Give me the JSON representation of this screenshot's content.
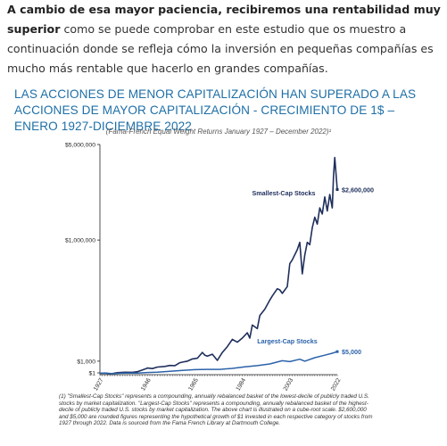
{
  "intro": {
    "lead": "A cambio de esa mayor paciencia, recibiremos una rentabilidad muy superior",
    "rest": "como se puede comprobar en este estudio que os muestro a continuación donde se refleja cómo la inversión en pequeñas compañías es mucho más rentable que hacerlo en grandes compañías."
  },
  "heading": "LAS ACCIONES DE MENOR CAPITALIZACIÓN HAN SUPERADO A LAS ACCIONES DE MAYOR CAPITALIZACIÓN - CRECIMIENTO DE 1$ – ENERO 1927-DICIEMBRE 2022",
  "chart_data": {
    "type": "line",
    "title": "(Fama-French Equal Weight Returns January 1927 – December 2022)¹",
    "scale": "cube-root",
    "ylim": [
      0,
      5000000
    ],
    "y_ticks": [
      {
        "label": "$5,000,000",
        "value": 5000000
      },
      {
        "label": "$1,000,000",
        "value": 1000000
      },
      {
        "label": "$1,000",
        "value": 1000
      },
      {
        "label": "$1",
        "value": 1
      }
    ],
    "x_ticks": [
      "1927",
      "1946",
      "1965",
      "1984",
      "2003",
      "2022"
    ],
    "xlim": [
      1927,
      2022
    ],
    "grid": false,
    "series": [
      {
        "name": "Smallest-Cap Stocks",
        "color": "#1f2f5c",
        "end_label": "$2,600,000",
        "x": [
          1927,
          1929,
          1931,
          1932,
          1934,
          1937,
          1940,
          1942,
          1945,
          1946,
          1948,
          1950,
          1953,
          1955,
          1957,
          1959,
          1961,
          1962,
          1964,
          1966,
          1968,
          1969,
          1970,
          1972,
          1974,
          1976,
          1978,
          1980,
          1982,
          1984,
          1986,
          1987,
          1988,
          1990,
          1991,
          1993,
          1995,
          1996,
          1998,
          1999,
          2000,
          2002,
          2003,
          2004,
          2006,
          2007,
          2008,
          2009,
          2010,
          2011,
          2012,
          2013,
          2014,
          2015,
          2016,
          2017,
          2018,
          2019,
          2020,
          2020.5,
          2021,
          2022
        ],
        "y": [
          1,
          1.4,
          0.3,
          0.5,
          3,
          6,
          5,
          10,
          70,
          120,
          90,
          180,
          230,
          320,
          300,
          700,
          900,
          1000,
          1600,
          1800,
          4500,
          3000,
          2600,
          3500,
          1200,
          4500,
          9000,
          18000,
          14000,
          20000,
          30000,
          20000,
          50000,
          40000,
          85000,
          115000,
          170000,
          200000,
          260000,
          250000,
          220000,
          280000,
          560000,
          620000,
          800000,
          950000,
          420000,
          700000,
          950000,
          900000,
          1300000,
          1600000,
          1400000,
          1900000,
          1700000,
          2300000,
          1800000,
          2400000,
          1900000,
          3200000,
          4200000,
          2600000
        ]
      },
      {
        "name": "Largest-Cap Stocks",
        "color": "#2b62a9",
        "end_label": "$5,000",
        "x": [
          1927,
          1929,
          1932,
          1935,
          1937,
          1942,
          1946,
          1950,
          1955,
          1960,
          1965,
          1970,
          1975,
          1980,
          1985,
          1990,
          1995,
          2000,
          2003,
          2007,
          2009,
          2013,
          2017,
          2020,
          2022
        ],
        "y": [
          1,
          2,
          0.4,
          1.2,
          1.8,
          1.5,
          4,
          6,
          15,
          30,
          50,
          60,
          60,
          100,
          200,
          300,
          500,
          1100,
          900,
          1500,
          1000,
          2000,
          3000,
          4000,
          5000
        ]
      }
    ]
  },
  "footnote": "(1) \"Smallest-Cap Stocks\" represents a compounding, annually rebalanced basket of the lowest-decile of publicly traded U.S. stocks by market capitalization. \"Largest-Cap Stocks\" represents a compounding, annually rebalanced basket of the highest-decile of publicly traded U.S. stocks by market capitalization. The above chart is illustrated on a cube-root scale. $2,600,000 and $5,000 are rounded figures representing the hypothetical growth of $1 invested in each respective category of stocks from 1927 through 2022. Data is sourced from the Fama French Library at Dartmouth College."
}
